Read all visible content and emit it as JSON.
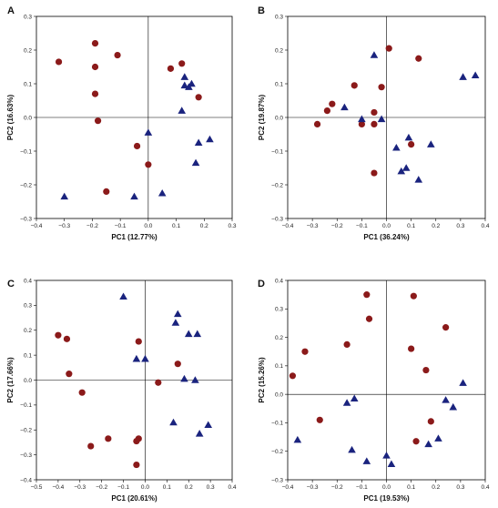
{
  "chart_data": [
    {
      "panel": "A",
      "type": "scatter",
      "xlabel": "PC1 (12.77%)",
      "ylabel": "PC2 (16.63%)",
      "xlim": [
        -0.4,
        0.3
      ],
      "ylim": [
        -0.3,
        0.3
      ],
      "xticks": [
        -0.4,
        -0.3,
        -0.2,
        -0.1,
        0,
        0.1,
        0.2,
        0.3
      ],
      "yticks": [
        -0.3,
        -0.2,
        -0.1,
        0,
        0.1,
        0.2,
        0.3
      ],
      "xtick_labels": [
        "−0.4",
        "−0.3",
        "−0.2",
        "−0.1",
        "0.0",
        "0.1",
        "0.2",
        "0.3"
      ],
      "ytick_labels": [
        "−0.3",
        "−0.2",
        "−0.1",
        "0.0",
        "0.1",
        "0.2",
        "0.3"
      ],
      "series": [
        {
          "marker": "circle",
          "color": "#8b1a1a",
          "points": [
            [
              -0.32,
              0.165
            ],
            [
              -0.19,
              0.22
            ],
            [
              -0.19,
              0.15
            ],
            [
              -0.19,
              0.07
            ],
            [
              -0.18,
              -0.01
            ],
            [
              -0.11,
              0.185
            ],
            [
              -0.04,
              -0.085
            ],
            [
              -0.15,
              -0.22
            ],
            [
              0.0,
              -0.14
            ],
            [
              0.08,
              0.145
            ],
            [
              0.12,
              0.16
            ],
            [
              0.18,
              0.06
            ]
          ]
        },
        {
          "marker": "triangle",
          "color": "#1a237e",
          "points": [
            [
              -0.3,
              -0.235
            ],
            [
              -0.05,
              -0.235
            ],
            [
              0.0,
              -0.045
            ],
            [
              0.05,
              -0.225
            ],
            [
              0.13,
              0.12
            ],
            [
              0.13,
              0.095
            ],
            [
              0.145,
              0.09
            ],
            [
              0.155,
              0.1
            ],
            [
              0.12,
              0.02
            ],
            [
              0.17,
              -0.135
            ],
            [
              0.18,
              -0.075
            ],
            [
              0.22,
              -0.065
            ]
          ]
        }
      ]
    },
    {
      "panel": "B",
      "type": "scatter",
      "xlabel": "PC1 (36.24%)",
      "ylabel": "PC2 (19.87%)",
      "xlim": [
        -0.4,
        0.4
      ],
      "ylim": [
        -0.3,
        0.3
      ],
      "xticks": [
        -0.4,
        -0.3,
        -0.2,
        -0.1,
        0,
        0.1,
        0.2,
        0.3,
        0.4
      ],
      "yticks": [
        -0.3,
        -0.2,
        -0.1,
        0,
        0.1,
        0.2,
        0.3
      ],
      "xtick_labels": [
        "−0.4",
        "−0.3",
        "−0.2",
        "−0.1",
        "0.0",
        "0.1",
        "0.2",
        "0.3",
        "0.4"
      ],
      "ytick_labels": [
        "−0.3",
        "−0.2",
        "−0.1",
        "0.0",
        "0.1",
        "0.2",
        "0.3"
      ],
      "series": [
        {
          "marker": "circle",
          "color": "#8b1a1a",
          "points": [
            [
              0.01,
              0.205
            ],
            [
              0.13,
              0.175
            ],
            [
              -0.13,
              0.095
            ],
            [
              -0.02,
              0.09
            ],
            [
              -0.22,
              0.04
            ],
            [
              -0.24,
              0.02
            ],
            [
              -0.05,
              0.015
            ],
            [
              -0.1,
              -0.02
            ],
            [
              -0.05,
              -0.02
            ],
            [
              -0.28,
              -0.02
            ],
            [
              0.1,
              -0.08
            ],
            [
              -0.05,
              -0.165
            ]
          ]
        },
        {
          "marker": "triangle",
          "color": "#1a237e",
          "points": [
            [
              -0.05,
              0.185
            ],
            [
              -0.17,
              0.03
            ],
            [
              -0.1,
              -0.005
            ],
            [
              -0.02,
              -0.005
            ],
            [
              0.09,
              -0.06
            ],
            [
              0.18,
              -0.08
            ],
            [
              0.04,
              -0.09
            ],
            [
              0.06,
              -0.16
            ],
            [
              0.08,
              -0.15
            ],
            [
              0.13,
              -0.185
            ],
            [
              0.31,
              0.12
            ],
            [
              0.36,
              0.125
            ]
          ]
        }
      ]
    },
    {
      "panel": "C",
      "type": "scatter",
      "xlabel": "PC1 (20.61%)",
      "ylabel": "PC2 (17.66%)",
      "xlim": [
        -0.5,
        0.4
      ],
      "ylim": [
        -0.4,
        0.4
      ],
      "xticks": [
        -0.5,
        -0.4,
        -0.3,
        -0.2,
        -0.1,
        0,
        0.1,
        0.2,
        0.3,
        0.4
      ],
      "yticks": [
        -0.4,
        -0.3,
        -0.2,
        -0.1,
        0,
        0.1,
        0.2,
        0.3,
        0.4
      ],
      "xtick_labels": [
        "−0.5",
        "−0.4",
        "−0.3",
        "−0.2",
        "−0.1",
        "0.0",
        "0.1",
        "0.2",
        "0.3",
        "0.4"
      ],
      "ytick_labels": [
        "−0.4",
        "−0.3",
        "−0.2",
        "−0.1",
        "0.0",
        "0.1",
        "0.2",
        "0.3",
        "0.4"
      ],
      "series": [
        {
          "marker": "circle",
          "color": "#8b1a1a",
          "points": [
            [
              -0.4,
              0.18
            ],
            [
              -0.36,
              0.165
            ],
            [
              -0.35,
              0.025
            ],
            [
              -0.29,
              -0.05
            ],
            [
              -0.25,
              -0.265
            ],
            [
              -0.17,
              -0.235
            ],
            [
              -0.04,
              -0.245
            ],
            [
              -0.03,
              -0.235
            ],
            [
              -0.03,
              0.155
            ],
            [
              -0.04,
              -0.34
            ],
            [
              0.06,
              -0.01
            ],
            [
              0.15,
              0.065
            ]
          ]
        },
        {
          "marker": "triangle",
          "color": "#1a237e",
          "points": [
            [
              -0.1,
              0.335
            ],
            [
              -0.04,
              0.085
            ],
            [
              0.0,
              0.085
            ],
            [
              0.15,
              0.265
            ],
            [
              0.14,
              0.23
            ],
            [
              0.2,
              0.185
            ],
            [
              0.24,
              0.185
            ],
            [
              0.18,
              0.005
            ],
            [
              0.23,
              0.0
            ],
            [
              0.13,
              -0.17
            ],
            [
              0.25,
              -0.215
            ],
            [
              0.29,
              -0.18
            ]
          ]
        }
      ]
    },
    {
      "panel": "D",
      "type": "scatter",
      "xlabel": "PC1 (19.53%)",
      "ylabel": "PC2 (15.26%)",
      "xlim": [
        -0.4,
        0.4
      ],
      "ylim": [
        -0.3,
        0.4
      ],
      "xticks": [
        -0.4,
        -0.3,
        -0.2,
        -0.1,
        0,
        0.1,
        0.2,
        0.3,
        0.4
      ],
      "yticks": [
        -0.3,
        -0.2,
        -0.1,
        0,
        0.1,
        0.2,
        0.3,
        0.4
      ],
      "xtick_labels": [
        "−0.4",
        "−0.3",
        "−0.2",
        "−0.1",
        "0.0",
        "0.1",
        "0.2",
        "0.3",
        "0.4"
      ],
      "ytick_labels": [
        "−0.3",
        "−0.2",
        "−0.1",
        "0.0",
        "0.1",
        "0.2",
        "0.3",
        "0.4"
      ],
      "series": [
        {
          "marker": "circle",
          "color": "#8b1a1a",
          "points": [
            [
              -0.08,
              0.35
            ],
            [
              -0.07,
              0.265
            ],
            [
              0.11,
              0.345
            ],
            [
              0.24,
              0.235
            ],
            [
              -0.33,
              0.15
            ],
            [
              -0.38,
              0.065
            ],
            [
              -0.16,
              0.175
            ],
            [
              0.1,
              0.16
            ],
            [
              0.16,
              0.085
            ],
            [
              -0.27,
              -0.09
            ],
            [
              0.18,
              -0.095
            ],
            [
              0.12,
              -0.165
            ]
          ]
        },
        {
          "marker": "triangle",
          "color": "#1a237e",
          "points": [
            [
              -0.36,
              -0.16
            ],
            [
              -0.13,
              -0.015
            ],
            [
              -0.16,
              -0.03
            ],
            [
              -0.14,
              -0.195
            ],
            [
              -0.08,
              -0.235
            ],
            [
              -0.0,
              -0.215
            ],
            [
              0.02,
              -0.245
            ],
            [
              0.17,
              -0.175
            ],
            [
              0.21,
              -0.155
            ],
            [
              0.24,
              -0.02
            ],
            [
              0.27,
              -0.045
            ],
            [
              0.31,
              0.04
            ]
          ]
        }
      ]
    }
  ]
}
